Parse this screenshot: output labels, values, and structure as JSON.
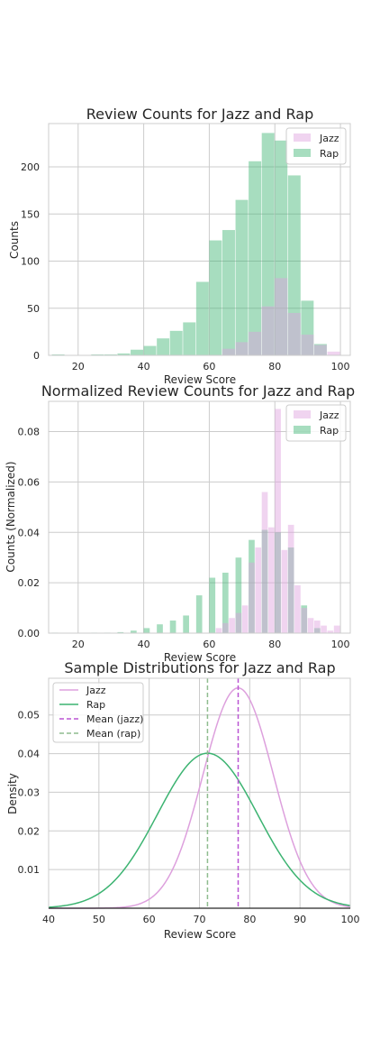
{
  "colors": {
    "jazz": "#dda0dd",
    "rap": "#3cb371",
    "jazz_mean": "#ba55d3",
    "rap_mean": "#8fbc8f"
  },
  "chart_data": [
    {
      "type": "bar",
      "title": "Review Counts for Jazz and Rap",
      "xlabel": "Review Score",
      "ylabel": "Counts",
      "xlim": [
        11,
        103
      ],
      "ylim": [
        0,
        246
      ],
      "xticks": [
        20,
        40,
        60,
        80,
        100
      ],
      "xtick_labels": [
        "20",
        "40",
        "60",
        "80",
        "100"
      ],
      "yticks": [
        0,
        50,
        100,
        150,
        200
      ],
      "ytick_labels": [
        "0",
        "50",
        "100",
        "150",
        "200"
      ],
      "grid": true,
      "legend": "top-right",
      "bin_width": 4,
      "series": [
        {
          "name": "Jazz",
          "bin_starts": [
            64,
            68,
            72,
            76,
            80,
            84,
            88,
            92,
            96
          ],
          "values": [
            7,
            14,
            25,
            52,
            82,
            45,
            22,
            11,
            4
          ]
        },
        {
          "name": "Rap",
          "bin_starts": [
            12,
            16,
            20,
            24,
            28,
            32,
            36,
            40,
            44,
            48,
            52,
            56,
            60,
            64,
            68,
            72,
            76,
            80,
            84,
            88,
            92
          ],
          "values": [
            1,
            0,
            0,
            1,
            1,
            2,
            6,
            10,
            18,
            26,
            35,
            78,
            122,
            133,
            165,
            206,
            236,
            228,
            191,
            58,
            12
          ]
        }
      ]
    },
    {
      "type": "bar",
      "title": "Normalized Review Counts for Jazz and Rap",
      "xlabel": "Review Score",
      "ylabel": "Counts (Normalized)",
      "xlim": [
        11,
        103
      ],
      "ylim": [
        0,
        0.092
      ],
      "xticks": [
        20,
        40,
        60,
        80,
        100
      ],
      "xtick_labels": [
        "20",
        "40",
        "60",
        "80",
        "100"
      ],
      "yticks": [
        0,
        0.02,
        0.04,
        0.06,
        0.08
      ],
      "ytick_labels": [
        "0.00",
        "0.02",
        "0.04",
        "0.06",
        "0.08"
      ],
      "grid": true,
      "legend": "top-right",
      "bin_width": 2,
      "series": [
        {
          "name": "Jazz",
          "bin_starts": [
            62,
            64,
            66,
            68,
            70,
            72,
            74,
            76,
            78,
            80,
            82,
            84,
            86,
            88,
            90,
            92,
            94,
            96,
            98
          ],
          "values": [
            0.002,
            0.004,
            0.006,
            0.008,
            0.011,
            0.028,
            0.034,
            0.056,
            0.042,
            0.089,
            0.033,
            0.043,
            0.019,
            0.01,
            0.006,
            0.005,
            0.003,
            0.001,
            0.003
          ]
        },
        {
          "name": "Rap",
          "bin_starts": [
            12,
            16,
            20,
            24,
            28,
            32,
            36,
            40,
            44,
            48,
            52,
            56,
            60,
            64,
            68,
            72,
            76,
            80,
            84,
            88,
            92
          ],
          "values": [
            0.0002,
            0,
            0,
            0.0002,
            0.0002,
            0.0004,
            0.001,
            0.002,
            0.0035,
            0.005,
            0.007,
            0.015,
            0.022,
            0.024,
            0.03,
            0.037,
            0.041,
            0.04,
            0.034,
            0.011,
            0.002
          ]
        }
      ]
    },
    {
      "type": "line",
      "title": "Sample Distributions for Jazz and Rap",
      "xlabel": "Review Score",
      "ylabel": "Density",
      "xlim": [
        40,
        100
      ],
      "ylim": [
        0,
        0.0595
      ],
      "xticks": [
        40,
        50,
        60,
        70,
        80,
        90,
        100
      ],
      "xtick_labels": [
        "40",
        "50",
        "60",
        "70",
        "80",
        "90",
        "100"
      ],
      "yticks": [
        0.01,
        0.02,
        0.03,
        0.04,
        0.05
      ],
      "ytick_labels": [
        "0.01",
        "0.02",
        "0.03",
        "0.04",
        "0.05"
      ],
      "grid": true,
      "legend": "top-left",
      "series": [
        {
          "name": "Jazz",
          "distribution": "normal",
          "mean": 77.7,
          "std": 7.0
        },
        {
          "name": "Rap",
          "distribution": "normal",
          "mean": 71.6,
          "std": 9.95
        }
      ],
      "vlines": [
        {
          "name": "Mean (jazz)",
          "x": 77.7
        },
        {
          "name": "Mean (rap)",
          "x": 71.6
        }
      ]
    }
  ]
}
